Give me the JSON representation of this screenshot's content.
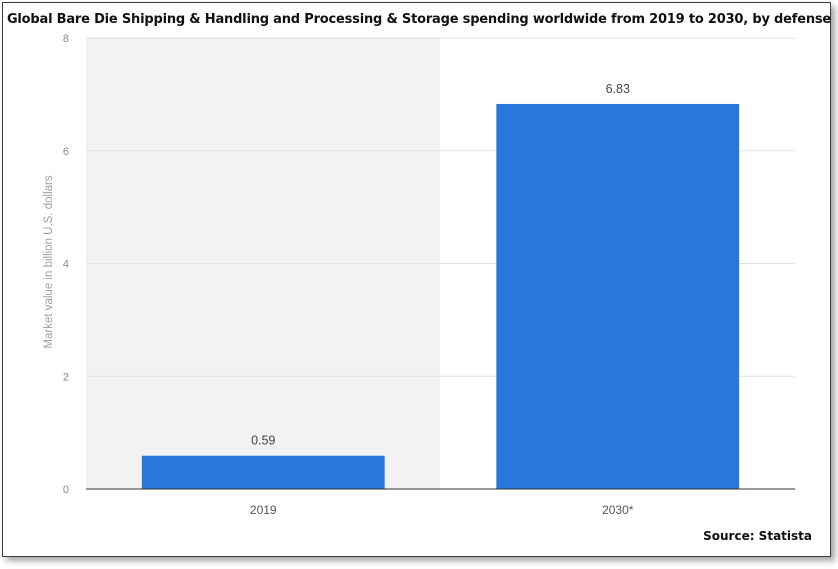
{
  "chart_data": {
    "type": "bar",
    "title": "Global Bare Die Shipping & Handling and Processing & Storage spending worldwide from 2019 to 2030, by defense",
    "categories": [
      "2019",
      "2030*"
    ],
    "values": [
      0.59,
      6.83
    ],
    "value_labels": [
      "0.59",
      "6.83"
    ],
    "xlabel": "",
    "ylabel": "Market value in billion U.S. dollars",
    "ylim": [
      0,
      8
    ],
    "yticks": [
      "0",
      "2",
      "4",
      "6",
      "8"
    ],
    "grid": true,
    "bar_color": "#2a78dc",
    "source": "Source: Statista"
  }
}
